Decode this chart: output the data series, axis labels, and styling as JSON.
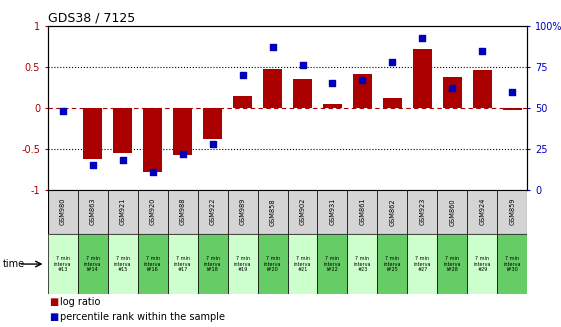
{
  "title": "GDS38 / 7125",
  "samples": [
    "GSM980",
    "GSM863",
    "GSM921",
    "GSM920",
    "GSM988",
    "GSM922",
    "GSM989",
    "GSM858",
    "GSM902",
    "GSM931",
    "GSM861",
    "GSM862",
    "GSM923",
    "GSM860",
    "GSM924",
    "GSM859"
  ],
  "time_labels": [
    [
      "7 min",
      "interva",
      "#13"
    ],
    [
      "7 min",
      "interva",
      "l#14"
    ],
    [
      "7 min",
      "interva",
      "#15"
    ],
    [
      "7 min",
      "interva",
      "l#16"
    ],
    [
      "7 min",
      "interva",
      "#17"
    ],
    [
      "7 min",
      "interva",
      "l#18"
    ],
    [
      "7 min",
      "interva",
      "#19"
    ],
    [
      "7 min",
      "interva",
      "l#20"
    ],
    [
      "7 min",
      "interva",
      "#21"
    ],
    [
      "7 min",
      "interva",
      "l#22"
    ],
    [
      "7 min",
      "interva",
      "#23"
    ],
    [
      "7 min",
      "interva",
      "l#25"
    ],
    [
      "7 min",
      "interva",
      "#27"
    ],
    [
      "7 min",
      "interva",
      "l#28"
    ],
    [
      "7 min",
      "interva",
      "#29"
    ],
    [
      "7 min",
      "interva",
      "l#30"
    ]
  ],
  "log_ratio": [
    0.0,
    -0.62,
    -0.55,
    -0.78,
    -0.57,
    -0.38,
    0.15,
    0.48,
    0.35,
    0.05,
    0.42,
    0.12,
    0.72,
    0.38,
    0.46,
    -0.02
  ],
  "percentile": [
    48,
    15,
    18,
    11,
    22,
    28,
    70,
    87,
    76,
    65,
    67,
    78,
    93,
    62,
    85,
    60
  ],
  "bar_color": "#aa0000",
  "dot_color": "#0000bb",
  "bg_color_gray": "#d4d4d4",
  "bg_color_green_dark": "#66cc66",
  "bg_color_green_light": "#ccffcc",
  "ylim_left": [
    -1.0,
    1.0
  ],
  "ylim_right": [
    0,
    100
  ],
  "yticks_left": [
    -1.0,
    -0.5,
    0.0,
    0.5,
    1.0
  ],
  "ytick_labels_left": [
    "-1",
    "-0.5",
    "0",
    "0.5",
    "1"
  ],
  "yticks_right": [
    0,
    25,
    50,
    75,
    100
  ],
  "ytick_labels_right": [
    "0",
    "25",
    "50",
    "75",
    "100%"
  ],
  "legend_labels": [
    "log ratio",
    "percentile rank within the sample"
  ],
  "legend_colors": [
    "#aa0000",
    "#0000bb"
  ],
  "time_label_text": "time"
}
